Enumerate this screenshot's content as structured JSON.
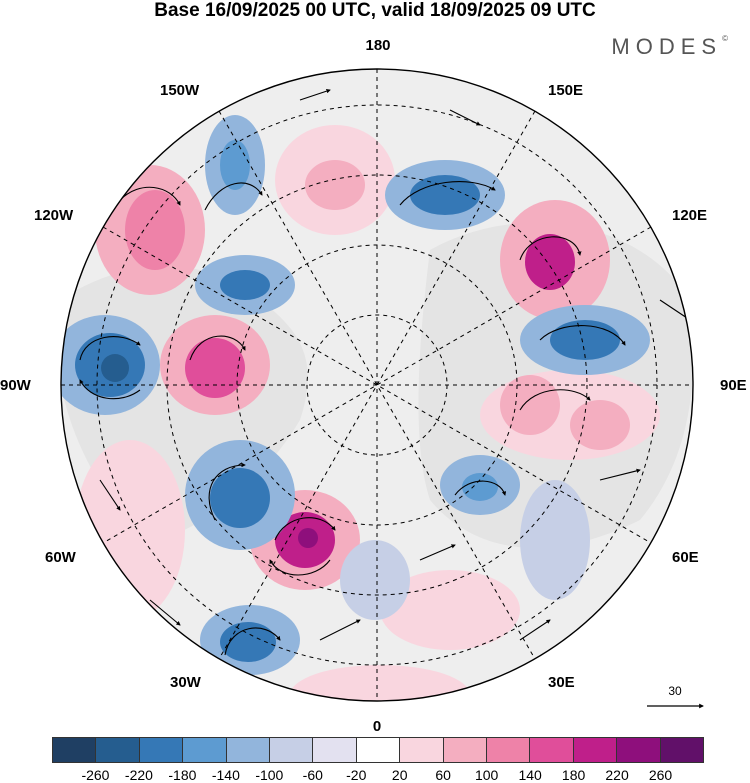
{
  "header": {
    "title": "Base 16/09/2025 00 UTC, valid 18/09/2025 09 UTC",
    "brand": "MODES",
    "brand_mark": "©"
  },
  "map": {
    "projection": "north polar stereographic",
    "longitude_labels": {
      "top": "180",
      "bottom": "0",
      "left": "90W",
      "right": "90E",
      "upper_left": "150W",
      "upper_right": "150E",
      "left_upper": "120W",
      "right_upper": "120E",
      "left_lower": "60W",
      "right_lower": "60E",
      "lower_left": "30W",
      "lower_right": "30E"
    },
    "reference_vector": {
      "value": "30"
    }
  },
  "colorbar": {
    "ticks": [
      "-260",
      "-220",
      "-180",
      "-140",
      "-100",
      "-60",
      "-20",
      "20",
      "60",
      "100",
      "140",
      "180",
      "220",
      "260"
    ],
    "colors": [
      "#1f3f63",
      "#255d8f",
      "#3578b6",
      "#5d9bd1",
      "#92b5dc",
      "#c6cfe6",
      "#e3e1f0",
      "#ffffff",
      "#f9d6df",
      "#f4aec0",
      "#ee82a8",
      "#e04e9a",
      "#bf1f8a",
      "#8e0f7c",
      "#611069"
    ]
  }
}
